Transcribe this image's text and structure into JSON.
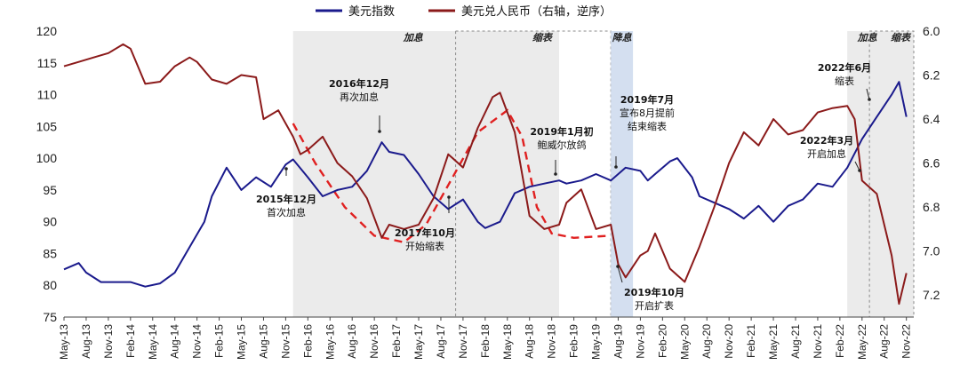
{
  "chart_data": {
    "type": "line",
    "legend": {
      "placement": "top-center"
    },
    "series": [
      {
        "name": "美元指数",
        "axis": "left",
        "color": "#1a1a8c",
        "points": [
          [
            "2013-05",
            82.5
          ],
          [
            "2013-07",
            83.5
          ],
          [
            "2013-08",
            82
          ],
          [
            "2013-10",
            80.5
          ],
          [
            "2013-12",
            80.5
          ],
          [
            "2014-02",
            80.5
          ],
          [
            "2014-04",
            79.8
          ],
          [
            "2014-06",
            80.3
          ],
          [
            "2014-08",
            82
          ],
          [
            "2014-10",
            86
          ],
          [
            "2014-12",
            90
          ],
          [
            "2015-01",
            94
          ],
          [
            "2015-03",
            98.5
          ],
          [
            "2015-05",
            95
          ],
          [
            "2015-07",
            97
          ],
          [
            "2015-09",
            95.5
          ],
          [
            "2015-11",
            99
          ],
          [
            "2015-12",
            99.8
          ],
          [
            "2016-02",
            97
          ],
          [
            "2016-04",
            94
          ],
          [
            "2016-06",
            95
          ],
          [
            "2016-08",
            95.5
          ],
          [
            "2016-10",
            98
          ],
          [
            "2016-12",
            102.5
          ],
          [
            "2017-01",
            101
          ],
          [
            "2017-03",
            100.5
          ],
          [
            "2017-05",
            97.5
          ],
          [
            "2017-07",
            94
          ],
          [
            "2017-09",
            92
          ],
          [
            "2017-11",
            93.5
          ],
          [
            "2018-01",
            90
          ],
          [
            "2018-02",
            89
          ],
          [
            "2018-04",
            90
          ],
          [
            "2018-06",
            94.5
          ],
          [
            "2018-08",
            95.5
          ],
          [
            "2018-10",
            96
          ],
          [
            "2018-12",
            96.5
          ],
          [
            "2019-01",
            96
          ],
          [
            "2019-03",
            96.5
          ],
          [
            "2019-05",
            97.5
          ],
          [
            "2019-07",
            96.5
          ],
          [
            "2019-09",
            98.5
          ],
          [
            "2019-11",
            98
          ],
          [
            "2019-12",
            96.5
          ],
          [
            "2020-01",
            97.5
          ],
          [
            "2020-03",
            99.5
          ],
          [
            "2020-04",
            100
          ],
          [
            "2020-06",
            97
          ],
          [
            "2020-07",
            94
          ],
          [
            "2020-09",
            93
          ],
          [
            "2020-11",
            92
          ],
          [
            "2021-01",
            90.5
          ],
          [
            "2021-03",
            92.5
          ],
          [
            "2021-05",
            90
          ],
          [
            "2021-07",
            92.5
          ],
          [
            "2021-09",
            93.5
          ],
          [
            "2021-11",
            96
          ],
          [
            "2022-01",
            95.5
          ],
          [
            "2022-03",
            98.5
          ],
          [
            "2022-05",
            103
          ],
          [
            "2022-07",
            106.5
          ],
          [
            "2022-09",
            110
          ],
          [
            "2022-10",
            112
          ],
          [
            "2022-11",
            106.5
          ]
        ]
      },
      {
        "name": "美元兑人民币（右轴，逆序）",
        "axis": "right",
        "color": "#8b1a1a",
        "points": [
          [
            "2013-05",
            6.16
          ],
          [
            "2013-07",
            6.14
          ],
          [
            "2013-09",
            6.12
          ],
          [
            "2013-11",
            6.1
          ],
          [
            "2014-01",
            6.06
          ],
          [
            "2014-02",
            6.08
          ],
          [
            "2014-04",
            6.24
          ],
          [
            "2014-06",
            6.23
          ],
          [
            "2014-08",
            6.16
          ],
          [
            "2014-10",
            6.12
          ],
          [
            "2014-11",
            6.14
          ],
          [
            "2015-01",
            6.22
          ],
          [
            "2015-03",
            6.24
          ],
          [
            "2015-05",
            6.2
          ],
          [
            "2015-07",
            6.21
          ],
          [
            "2015-08",
            6.4
          ],
          [
            "2015-10",
            6.36
          ],
          [
            "2015-12",
            6.48
          ],
          [
            "2016-01",
            6.56
          ],
          [
            "2016-02",
            6.54
          ],
          [
            "2016-04",
            6.48
          ],
          [
            "2016-06",
            6.6
          ],
          [
            "2016-08",
            6.66
          ],
          [
            "2016-10",
            6.76
          ],
          [
            "2016-12",
            6.94
          ],
          [
            "2017-01",
            6.88
          ],
          [
            "2017-03",
            6.9
          ],
          [
            "2017-05",
            6.88
          ],
          [
            "2017-07",
            6.76
          ],
          [
            "2017-09",
            6.56
          ],
          [
            "2017-11",
            6.62
          ],
          [
            "2018-01",
            6.44
          ],
          [
            "2018-03",
            6.3
          ],
          [
            "2018-04",
            6.28
          ],
          [
            "2018-06",
            6.46
          ],
          [
            "2018-08",
            6.84
          ],
          [
            "2018-10",
            6.9
          ],
          [
            "2018-12",
            6.88
          ],
          [
            "2019-01",
            6.78
          ],
          [
            "2019-03",
            6.72
          ],
          [
            "2019-05",
            6.9
          ],
          [
            "2019-07",
            6.88
          ],
          [
            "2019-08",
            7.06
          ],
          [
            "2019-09",
            7.12
          ],
          [
            "2019-11",
            7.02
          ],
          [
            "2019-12",
            7.0
          ],
          [
            "2020-01",
            6.92
          ],
          [
            "2020-03",
            7.08
          ],
          [
            "2020-05",
            7.14
          ],
          [
            "2020-07",
            6.98
          ],
          [
            "2020-09",
            6.8
          ],
          [
            "2020-11",
            6.6
          ],
          [
            "2021-01",
            6.46
          ],
          [
            "2021-03",
            6.52
          ],
          [
            "2021-05",
            6.4
          ],
          [
            "2021-07",
            6.47
          ],
          [
            "2021-09",
            6.45
          ],
          [
            "2021-11",
            6.37
          ],
          [
            "2022-01",
            6.35
          ],
          [
            "2022-03",
            6.34
          ],
          [
            "2022-04",
            6.4
          ],
          [
            "2022-05",
            6.68
          ],
          [
            "2022-07",
            6.74
          ],
          [
            "2022-09",
            7.02
          ],
          [
            "2022-10",
            7.24
          ],
          [
            "2022-11",
            7.1
          ]
        ]
      }
    ],
    "y_left": {
      "min": 75,
      "max": 120,
      "ticks": [
        75,
        80,
        85,
        90,
        95,
        100,
        105,
        110,
        115,
        120
      ]
    },
    "y_right": {
      "min": 6.0,
      "max": 7.3,
      "inverted": true,
      "ticks": [
        6.0,
        6.2,
        6.4,
        6.6,
        6.8,
        7.0,
        7.2
      ],
      "tick_labels": [
        "6.0",
        "6.2",
        "6.4",
        "6.6",
        "6.8",
        "7.0",
        "7.2"
      ]
    },
    "x_axis": {
      "start": "2013-05",
      "end": "2022-12",
      "ticks": [
        "May-13",
        "Aug-13",
        "Nov-13",
        "Feb-14",
        "May-14",
        "Aug-14",
        "Nov-14",
        "Feb-15",
        "May-15",
        "Aug-15",
        "Nov-15",
        "Feb-16",
        "May-16",
        "Aug-16",
        "Nov-16",
        "Feb-17",
        "May-17",
        "Aug-17",
        "Nov-17",
        "Feb-18",
        "May-18",
        "Aug-18",
        "Nov-18",
        "Feb-19",
        "May-19",
        "Aug-19",
        "Nov-19",
        "Feb-20",
        "May-20",
        "Aug-20",
        "Nov-20",
        "Feb-21",
        "May-21",
        "Aug-21",
        "Nov-21",
        "Feb-22",
        "May-22",
        "Aug-22",
        "Nov-22"
      ]
    },
    "periods": [
      {
        "label": "加息",
        "start": "2015-12",
        "end": "2018-12",
        "style": "gray"
      },
      {
        "label": "缩表",
        "start": "2017-10",
        "end": "2019-07",
        "style": "dashed-box"
      },
      {
        "label": "降息",
        "start": "2019-07",
        "end": "2019-10",
        "style": "blue"
      },
      {
        "label": "加息",
        "start": "2022-03",
        "end": "2022-12",
        "style": "gray"
      },
      {
        "label": "缩表",
        "start": "2022-06",
        "end": "2022-12",
        "style": "dashed-box"
      }
    ],
    "trend_curves": [
      {
        "axis": "right",
        "points": [
          [
            "2015-12",
            6.42
          ],
          [
            "2016-03",
            6.6
          ],
          [
            "2016-07",
            6.8
          ],
          [
            "2016-11",
            6.93
          ],
          [
            "2017-03",
            6.96
          ],
          [
            "2017-06",
            6.88
          ],
          [
            "2017-09",
            6.7
          ],
          [
            "2018-01",
            6.46
          ],
          [
            "2018-05",
            6.36
          ],
          [
            "2018-07",
            6.48
          ],
          [
            "2018-09",
            6.8
          ],
          [
            "2018-11",
            6.92
          ],
          [
            "2019-02",
            6.94
          ],
          [
            "2019-07",
            6.93
          ]
        ]
      }
    ],
    "annotations": [
      {
        "lines": [
          "2015年12月",
          "首次加息"
        ],
        "date": "2015-12"
      },
      {
        "lines": [
          "2016年12月",
          "再次加息"
        ],
        "date": "2016-12"
      },
      {
        "lines": [
          "2017年10月",
          "开始缩表"
        ],
        "date": "2017-10"
      },
      {
        "lines": [
          "2019年1月初",
          "鲍威尔放鸽"
        ],
        "date": "2019-01"
      },
      {
        "lines": [
          "2019年7月",
          "宣布8月提前",
          "结束缩表"
        ],
        "date": "2019-07"
      },
      {
        "lines": [
          "2019年10月",
          "开启扩表"
        ],
        "date": "2019-10"
      },
      {
        "lines": [
          "2022年6月",
          "缩表"
        ],
        "date": "2022-06"
      },
      {
        "lines": [
          "2022年3月",
          "开启加息"
        ],
        "date": "2022-03"
      }
    ]
  }
}
